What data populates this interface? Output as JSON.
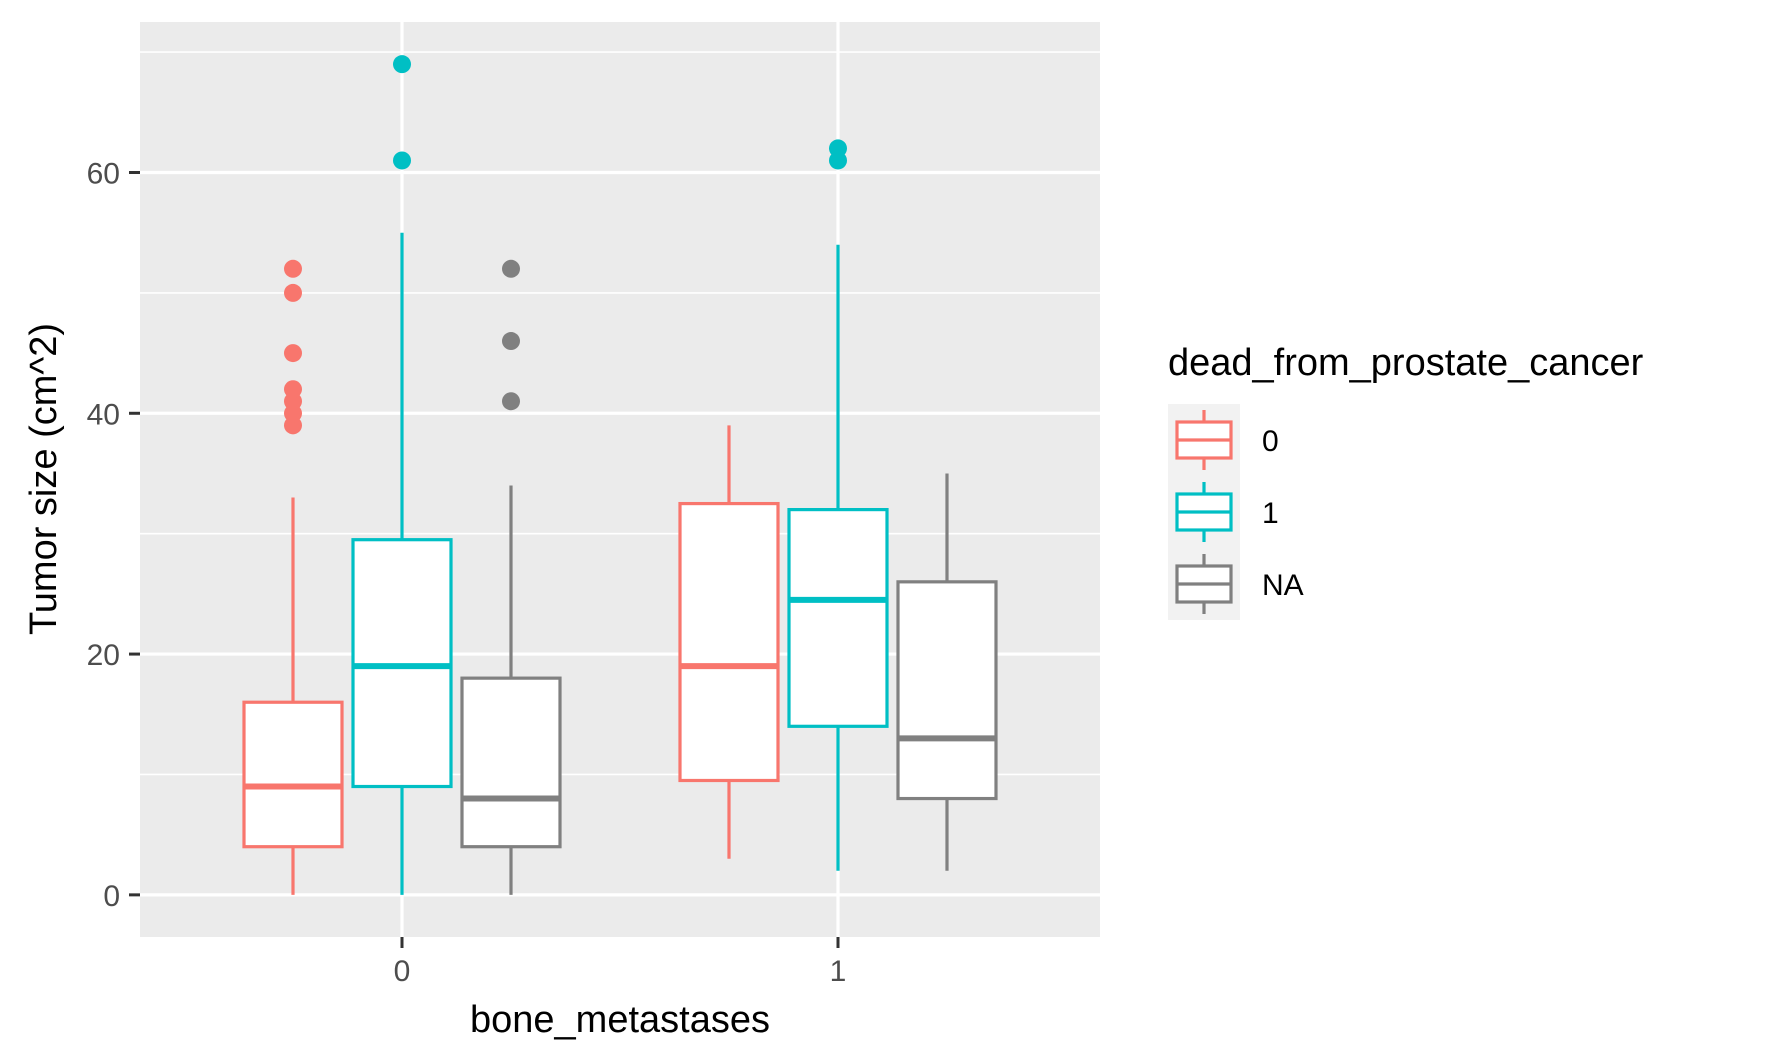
{
  "chart_data": {
    "type": "boxplot",
    "title": "",
    "xlabel": "bone_metastases",
    "ylabel": "Tumor size (cm^2)",
    "ylim": [
      -3.5,
      72.5
    ],
    "y_ticks": [
      0,
      20,
      40,
      60
    ],
    "categories": [
      "0",
      "1"
    ],
    "grid": true,
    "legend": {
      "title": "dead_from_prostate_cancer",
      "position": "right",
      "entries": [
        {
          "label": "0",
          "color": "#F8766D"
        },
        {
          "label": "1",
          "color": "#00BFC4"
        },
        {
          "label": "NA",
          "color": "#808080"
        }
      ]
    },
    "groups": [
      {
        "category": "0",
        "boxes": [
          {
            "series": "0",
            "whisker_low": 0,
            "q1": 4,
            "median": 9,
            "q3": 16,
            "whisker_high": 33,
            "outliers": [
              39,
              40,
              41,
              42,
              45,
              50,
              52
            ]
          },
          {
            "series": "1",
            "whisker_low": 0,
            "q1": 9,
            "median": 19,
            "q3": 29.5,
            "whisker_high": 55,
            "outliers": [
              61,
              69
            ]
          },
          {
            "series": "NA",
            "whisker_low": 0,
            "q1": 4,
            "median": 8,
            "q3": 18,
            "whisker_high": 34,
            "outliers": [
              41,
              46,
              52
            ]
          }
        ]
      },
      {
        "category": "1",
        "boxes": [
          {
            "series": "0",
            "whisker_low": 3,
            "q1": 9.5,
            "median": 19,
            "q3": 32.5,
            "whisker_high": 39,
            "outliers": []
          },
          {
            "series": "1",
            "whisker_low": 2,
            "q1": 14,
            "median": 24.5,
            "q3": 32,
            "whisker_high": 54,
            "outliers": [
              61,
              62
            ]
          },
          {
            "series": "NA",
            "whisker_low": 2,
            "q1": 8,
            "median": 13,
            "q3": 26,
            "whisker_high": 35,
            "outliers": []
          }
        ]
      }
    ]
  }
}
